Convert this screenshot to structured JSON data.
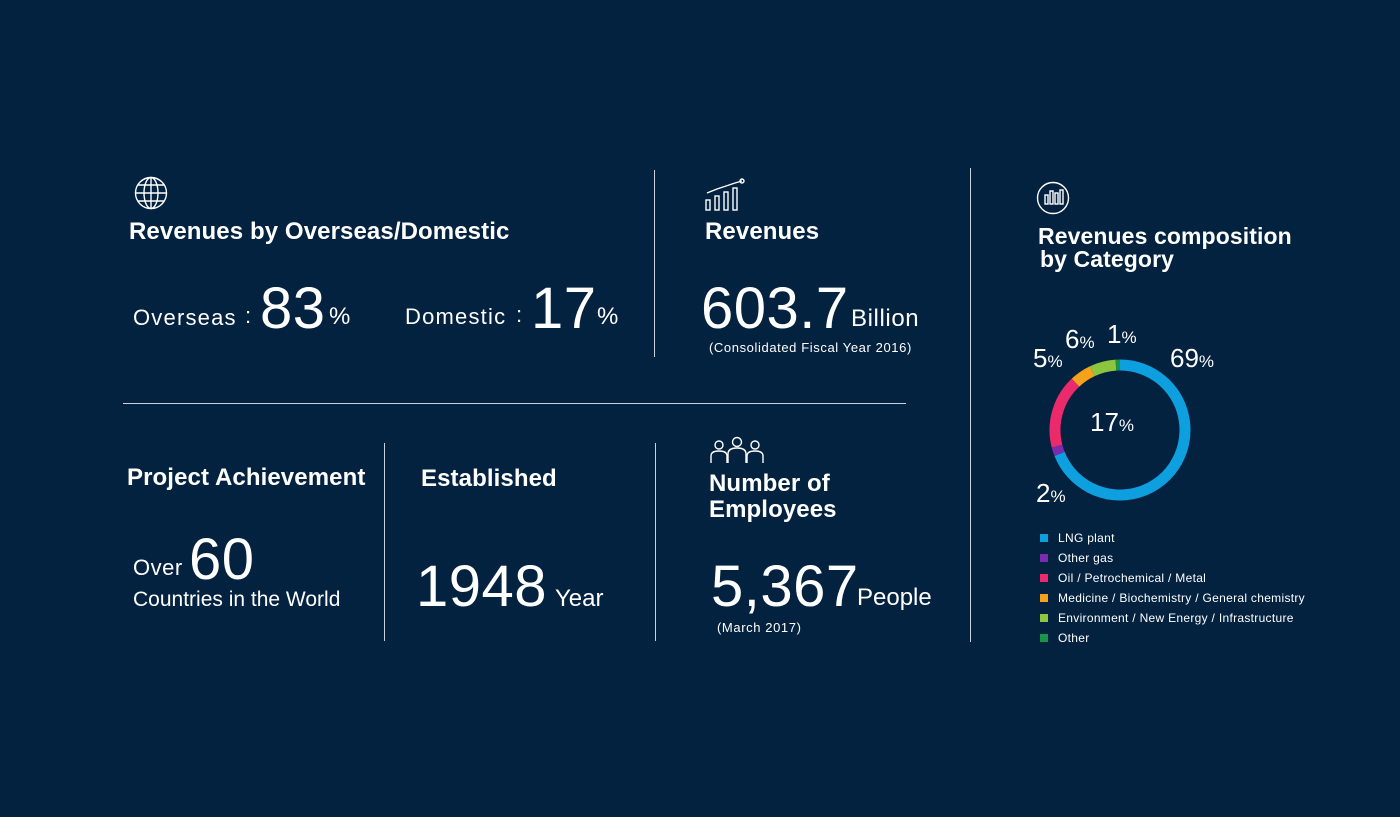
{
  "overseas_domestic": {
    "title": "Revenues by Overseas/Domestic",
    "overseas_label": "Overseas",
    "overseas_value": "83",
    "domestic_label": "Domestic",
    "domestic_value": "17",
    "colon": ":",
    "percent": "%"
  },
  "revenues": {
    "title": "Revenues",
    "value": "603.7",
    "unit": "Billion",
    "note": "(Consolidated Fiscal Year 2016)"
  },
  "project": {
    "title": "Project Achievement",
    "prefix": "Over",
    "value": "60",
    "suffix": "Countries in the World"
  },
  "established": {
    "title": "Established",
    "value": "1948",
    "unit": "Year"
  },
  "employees": {
    "title_line1": "Number of",
    "title_line2": "Employees",
    "value": "5,367",
    "unit": "People",
    "note": "(March 2017)"
  },
  "composition": {
    "title_line1": "Revenues composition",
    "title_line2": "by Category"
  },
  "icons": {
    "globe": "globe-icon",
    "growth": "growth-chart-icon",
    "bar": "bar-chart-icon",
    "people": "people-icon"
  },
  "chart_data": {
    "type": "pie",
    "title": "Revenues composition by Category",
    "categories": [
      "LNG plant",
      "Other gas",
      "Oil / Petrochemical / Metal",
      "Medicine / Biochemistry / General chemistry",
      "Environment / New Energy / Infrastructure",
      "Other"
    ],
    "values": [
      69,
      2,
      17,
      5,
      6,
      1
    ],
    "value_labels": [
      "69",
      "2",
      "17",
      "5",
      "6",
      "1"
    ],
    "unit": "%",
    "colors": [
      "#0e9fdf",
      "#7b2ab2",
      "#ea2a6b",
      "#f4a21c",
      "#8cc63e",
      "#1a9447"
    ],
    "legend_position": "bottom"
  }
}
